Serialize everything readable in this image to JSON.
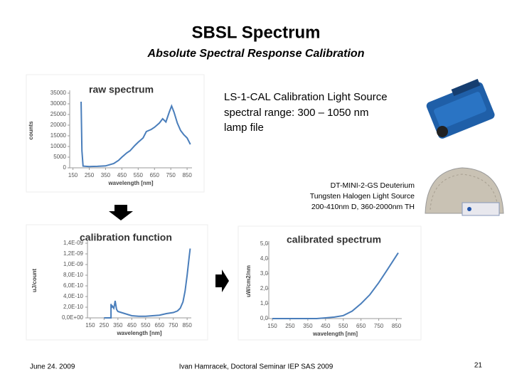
{
  "header": {
    "title": "SBSL Spectrum",
    "subtitle": "Absolute Spectral Response Calibration"
  },
  "source_1": {
    "lines": [
      "LS-1-CAL Calibration Light Source",
      "spectral range: 300 – 1050 nm",
      "lamp file"
    ]
  },
  "source_2": {
    "lines": [
      "DT-MINI-2-GS Deuterium",
      "Tungsten  Halogen Light Source",
      "200-410nm D, 360-2000nm TH"
    ]
  },
  "footer": {
    "date": "June 24. 2009",
    "author": "Ivan Hamracek, Doctoral Seminar IEP SAS 2009",
    "page": "21"
  },
  "chart_data": [
    {
      "type": "line",
      "title": "raw spectrum",
      "x_label": "wavelength [nm]",
      "y_label": "counts",
      "color": "#4a7ebb",
      "x": [
        200,
        205,
        212,
        250,
        300,
        350,
        400,
        430,
        450,
        480,
        500,
        530,
        550,
        580,
        600,
        630,
        650,
        680,
        700,
        720,
        740,
        755,
        770,
        790,
        810,
        830,
        850,
        870
      ],
      "values": [
        31000,
        8000,
        800,
        600,
        700,
        900,
        2000,
        3500,
        5000,
        7000,
        8000,
        10500,
        12000,
        14000,
        17000,
        18000,
        19000,
        21000,
        23000,
        21500,
        26000,
        29000,
        26000,
        21000,
        17500,
        15500,
        14000,
        11000
      ],
      "xlim": [
        130,
        880
      ],
      "xticks": [
        150,
        250,
        350,
        450,
        550,
        650,
        750,
        850
      ],
      "ylim": [
        0,
        35000
      ],
      "yticks": [
        0,
        5000,
        10000,
        15000,
        20000,
        25000,
        30000,
        35000
      ]
    },
    {
      "type": "line",
      "title": "calibration function",
      "x_label": "wavelength [nm]",
      "y_label": "uJ/count",
      "color": "#4a7ebb",
      "x": [
        250,
        300,
        300,
        305,
        310,
        320,
        325,
        330,
        340,
        350,
        375,
        400,
        450,
        500,
        550,
        600,
        650,
        700,
        750,
        780,
        800,
        820,
        835,
        850,
        865,
        872
      ],
      "values": [
        0,
        0,
        2.6e-10,
        2e-10,
        2.2e-10,
        1.8e-10,
        2.4e-10,
        3.2e-10,
        1.6e-10,
        1.2e-10,
        1e-10,
        8e-11,
        4e-11,
        3e-11,
        3e-11,
        4e-11,
        5e-11,
        8e-11,
        1e-10,
        1.3e-10,
        1.8e-10,
        3e-10,
        5e-10,
        8e-10,
        1.15e-09,
        1.3e-09
      ],
      "xlim": [
        130,
        880
      ],
      "xticks": [
        150,
        250,
        350,
        450,
        550,
        650,
        750,
        850
      ],
      "ylim": [
        0,
        1.4e-09
      ],
      "yticks": [
        {
          "value": 0,
          "label": "0,0E+00"
        },
        {
          "value": 2e-10,
          "label": "2,0E-10"
        },
        {
          "value": 4e-10,
          "label": "4,0E-10"
        },
        {
          "value": 6e-10,
          "label": "6,0E-10"
        },
        {
          "value": 8e-10,
          "label": "8,0E-10"
        },
        {
          "value": 1e-09,
          "label": "1,0E-09"
        },
        {
          "value": 1.2e-09,
          "label": "1,2E-09"
        },
        {
          "value": 1.4e-09,
          "label": "1,4E-09"
        }
      ]
    },
    {
      "type": "line",
      "title": "calibrated spectrum",
      "x_label": "wavelength [nm]",
      "y_label": "uW/cm2/nm",
      "color": "#4a7ebb",
      "x": [
        150,
        250,
        350,
        400,
        450,
        500,
        550,
        600,
        650,
        700,
        750,
        800,
        860
      ],
      "values": [
        0,
        0,
        0,
        0,
        0.05,
        0.1,
        0.2,
        0.5,
        1.0,
        1.6,
        2.4,
        3.3,
        4.4
      ],
      "xlim": [
        130,
        880
      ],
      "xticks": [
        150,
        250,
        350,
        450,
        550,
        650,
        750,
        850
      ],
      "ylim": [
        0,
        5
      ],
      "yticks": [
        {
          "value": 0,
          "label": "0,0"
        },
        {
          "value": 1,
          "label": "1,0"
        },
        {
          "value": 2,
          "label": "2,0"
        },
        {
          "value": 3,
          "label": "3,0"
        },
        {
          "value": 4,
          "label": "4,0"
        },
        {
          "value": 5,
          "label": "5,0"
        }
      ]
    }
  ]
}
